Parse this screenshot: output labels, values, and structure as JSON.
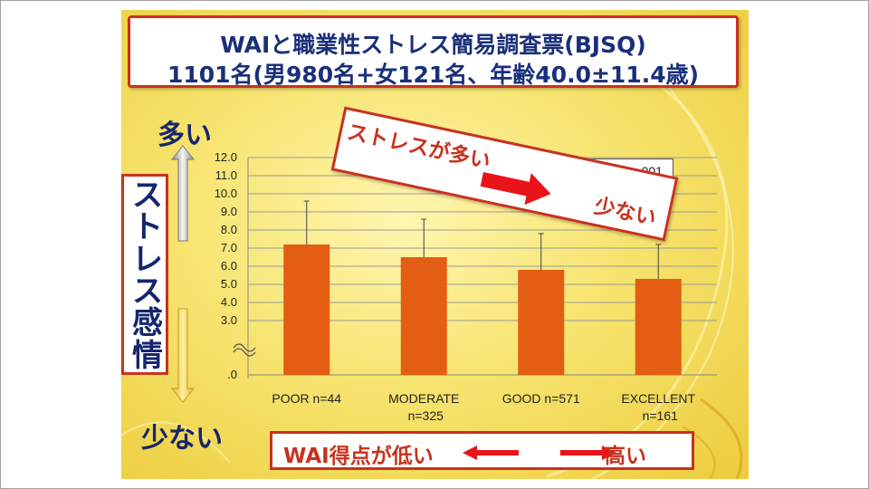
{
  "title": {
    "line1": "WAIと職業性ストレス簡易調査票(BJSQ)",
    "line2": "1101名(男980名+女121名、年齢40.0±11.4歳)"
  },
  "labels": {
    "many": "多い",
    "few": "少ない",
    "y_axis": "ストレス感情",
    "x_low": "WAI得点が低い",
    "x_high": "高い",
    "banner_many": "ストレスが多い",
    "banner_few": "少ない",
    "anova": "ANOVA    p<.001"
  },
  "colors": {
    "bar": "#e35e12",
    "accent": "#c8321e",
    "title_text": "#1a2f7a"
  },
  "chart_data": {
    "type": "bar",
    "categories": [
      [
        "POOR n=44"
      ],
      [
        "MODERATE",
        "n=325"
      ],
      [
        "GOOD n=571"
      ],
      [
        "EXCELLENT",
        "n=161"
      ]
    ],
    "values": [
      7.2,
      6.5,
      5.8,
      5.3
    ],
    "error_plus": [
      2.4,
      2.1,
      2.0,
      1.9
    ],
    "yticks": [
      ".0",
      "3.0",
      "4.0",
      "5.0",
      "6.0",
      "7.0",
      "8.0",
      "9.0",
      "10.0",
      "11.0",
      "12.0"
    ],
    "ylim": [
      0,
      12
    ],
    "axis_break": true,
    "grid": true
  }
}
